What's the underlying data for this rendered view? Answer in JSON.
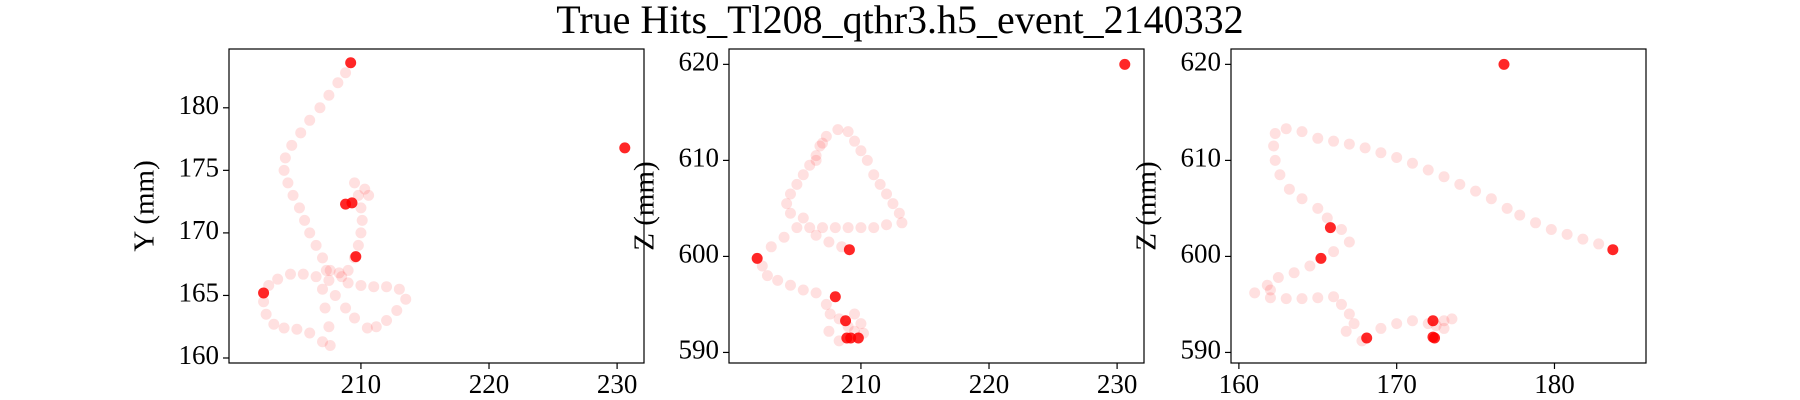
{
  "title": "True Hits_Tl208_qthr3.h5_event_2140332",
  "chart_data": [
    {
      "type": "scatter",
      "ylabel": "Y (mm)",
      "xlim": [
        199.7,
        232.1
      ],
      "ylim": [
        159.6,
        184.7
      ],
      "xticks": [
        210,
        220,
        230
      ],
      "yticks": [
        160,
        165,
        170,
        175,
        180
      ],
      "series": [
        {
          "color": "#ff0000",
          "opacity": 0.12,
          "x": [
            208.8,
            208.2,
            207.5,
            206.8,
            206,
            205.3,
            204.6,
            204.1,
            204,
            204.3,
            204.7,
            205.2,
            205.6,
            206,
            206.5,
            207,
            207.6,
            208.3,
            209,
            209.5,
            209.8,
            210,
            210.1,
            210,
            209.8,
            210.3,
            209.5,
            210.6,
            208.5,
            207.5,
            206.5,
            205.5,
            204.5,
            203.5,
            202.8,
            202.4,
            202.6,
            203.2,
            204,
            205,
            206,
            207,
            207.6,
            207.5,
            207.2,
            207,
            207.3,
            208,
            208.8,
            209.5,
            210.5,
            211.2,
            212,
            212.8,
            213.5,
            213,
            212,
            211,
            210,
            209
          ],
          "y": [
            182.8,
            182,
            181,
            180,
            179,
            178,
            177,
            176,
            175,
            174,
            173,
            172,
            171,
            170,
            169,
            168,
            167,
            166.8,
            167,
            168,
            169,
            170,
            171,
            172,
            173,
            173.5,
            174,
            173,
            166.5,
            166.2,
            166.5,
            166.7,
            166.7,
            166.3,
            165.8,
            164.5,
            163.5,
            162.7,
            162.4,
            162.3,
            162,
            161.3,
            161,
            162.5,
            164,
            165.5,
            167,
            165,
            164,
            163.2,
            162.4,
            162.5,
            163,
            163.8,
            164.7,
            165.5,
            165.7,
            165.7,
            165.8,
            166
          ]
        },
        {
          "color": "#ff0000",
          "opacity": 0.85,
          "x": [
            209.2,
            230.6,
            208.8,
            209.3,
            209.6,
            202.4
          ],
          "y": [
            183.6,
            176.8,
            172.3,
            172.4,
            168.1,
            165.2
          ]
        }
      ]
    },
    {
      "type": "scatter",
      "ylabel": "Z (mm)",
      "xlim": [
        199.7,
        232.1
      ],
      "ylim": [
        588.9,
        621.6
      ],
      "xticks": [
        210,
        220,
        230
      ],
      "yticks": [
        590,
        600,
        610,
        620
      ],
      "series": [
        {
          "color": "#ff0000",
          "opacity": 0.12,
          "x": [
            203,
            204,
            205,
            206,
            207,
            208,
            209,
            210,
            211,
            212,
            213.2,
            213,
            212.5,
            212,
            211.5,
            211,
            210.5,
            210,
            209.5,
            209,
            208.2,
            207.3,
            206.8,
            206.5,
            206,
            205.5,
            205,
            204.5,
            204.2,
            204.5,
            205.5,
            206.5,
            207.5,
            208.5,
            202.3,
            202.7,
            203.5,
            204.5,
            205.5,
            206.5,
            207.3,
            207.6,
            208.3,
            209.5,
            210,
            209.5,
            208.3,
            207.5,
            209,
            210.2,
            206.5,
            207
          ],
          "y": [
            601,
            602,
            603,
            603,
            603,
            603,
            603,
            603,
            603,
            603.3,
            603.5,
            604.5,
            605.5,
            606.5,
            607.5,
            608.5,
            610,
            611,
            612,
            613,
            613.2,
            612.5,
            611.5,
            610.5,
            609.5,
            608.5,
            607.5,
            606.5,
            605.5,
            604.5,
            604,
            602.2,
            601.5,
            601,
            599,
            598,
            597.5,
            597,
            596.5,
            596.2,
            595,
            594,
            593.5,
            594,
            593,
            592.2,
            591.2,
            592.2,
            592.7,
            592,
            610,
            611.8
          ]
        },
        {
          "color": "#ff0000",
          "opacity": 0.85,
          "x": [
            230.6,
            209.1,
            201.9,
            208,
            208.8,
            209.2,
            209.8,
            208.9
          ],
          "y": [
            620,
            600.7,
            599.8,
            595.8,
            593.3,
            591.5,
            591.5,
            591.5
          ]
        }
      ]
    },
    {
      "type": "scatter",
      "ylabel": "Z (mm)",
      "xlim": [
        159.5,
        185.8
      ],
      "ylim": [
        588.9,
        621.6
      ],
      "xticks": [
        160,
        170,
        180
      ],
      "yticks": [
        590,
        600,
        610,
        620
      ],
      "series": [
        {
          "color": "#ff0000",
          "opacity": 0.12,
          "x": [
            182.8,
            181.8,
            180.8,
            179.8,
            178.8,
            177.8,
            177,
            176,
            175,
            174,
            173,
            172,
            171,
            170,
            169,
            168,
            167,
            166,
            165,
            164,
            163,
            162.3,
            162.2,
            162.3,
            162.6,
            163.2,
            164,
            165,
            165.6,
            166.5,
            167,
            166,
            164.5,
            163.5,
            162.5,
            161.8,
            161,
            162,
            163,
            164,
            165,
            166,
            166.5,
            167,
            167.3,
            166.8,
            167.8,
            169,
            170,
            171,
            172,
            173,
            173.5,
            173,
            172.5,
            162
          ],
          "y": [
            601.3,
            601.8,
            602.3,
            602.8,
            603.5,
            604.3,
            605,
            606,
            606.8,
            607.5,
            608.3,
            609,
            609.7,
            610.3,
            610.8,
            611.3,
            611.7,
            612,
            612.3,
            613,
            613.3,
            612.8,
            611.5,
            610,
            608.5,
            607,
            606,
            605,
            604,
            602.8,
            601.5,
            600.5,
            599,
            598.3,
            597.8,
            597,
            596.2,
            595.7,
            595.6,
            595.6,
            595.7,
            595.8,
            595,
            594,
            593,
            592.2,
            591.2,
            592.5,
            593,
            593.3,
            593,
            593.3,
            593.5,
            592.5,
            592.8,
            596.5
          ]
        },
        {
          "color": "#ff0000",
          "opacity": 0.85,
          "x": [
            176.8,
            183.7,
            165.2,
            172.3,
            172.4,
            168.1,
            172.3,
            165.8
          ],
          "y": [
            620,
            600.7,
            599.8,
            593.3,
            591.5,
            591.5,
            591.6,
            603
          ]
        }
      ]
    }
  ]
}
